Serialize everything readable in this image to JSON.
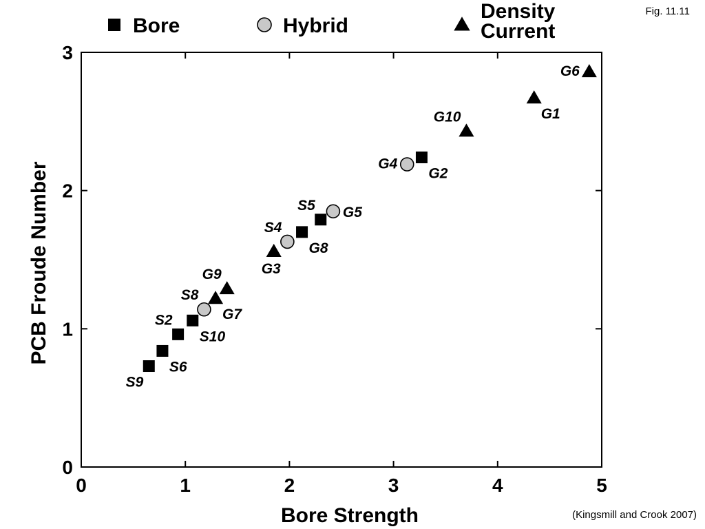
{
  "figure_label": "Fig. 11.11",
  "source_note": "(Kingsmill and Crook 2007)",
  "colors": {
    "marker": "#000000",
    "hybrid_fill": "#c8c8c8"
  },
  "chart_data": {
    "type": "scatter",
    "title": "",
    "xlabel": "Bore Strength",
    "ylabel": "PCB Froude Number",
    "xlim": [
      0,
      5
    ],
    "ylim": [
      0,
      3
    ],
    "xticks": [
      0,
      1,
      2,
      3,
      4,
      5
    ],
    "yticks": [
      0,
      1,
      2,
      3
    ],
    "grid": false,
    "legend_position": "top",
    "legend": [
      {
        "key": "bore",
        "lines": [
          "Bore"
        ]
      },
      {
        "key": "hybrid",
        "lines": [
          "Hybrid"
        ]
      },
      {
        "key": "density",
        "lines": [
          "Density",
          "Current"
        ]
      }
    ],
    "series": [
      {
        "key": "bore",
        "name": "Bore",
        "marker": "square",
        "points": [
          {
            "x": 0.65,
            "y": 0.73,
            "label": "S9",
            "label_pos": "below-left"
          },
          {
            "x": 0.78,
            "y": 0.84,
            "label": "S6",
            "label_pos": "below-right"
          },
          {
            "x": 0.93,
            "y": 0.96,
            "label": "S2",
            "label_pos": "above-left"
          },
          {
            "x": 1.07,
            "y": 1.06,
            "label": "S10",
            "label_pos": "below-right"
          },
          {
            "x": 2.12,
            "y": 1.7,
            "label": "G8",
            "label_pos": "below-right"
          },
          {
            "x": 2.3,
            "y": 1.79,
            "label": "S5",
            "label_pos": "above-left"
          },
          {
            "x": 3.27,
            "y": 2.24,
            "label": "G2",
            "label_pos": "below-right"
          }
        ]
      },
      {
        "key": "hybrid",
        "name": "Hybrid",
        "marker": "circle",
        "points": [
          {
            "x": 1.18,
            "y": 1.14,
            "label": "S8",
            "label_pos": "above-left"
          },
          {
            "x": 1.98,
            "y": 1.63,
            "label": "S4",
            "label_pos": "above-left"
          },
          {
            "x": 2.42,
            "y": 1.85,
            "label": "G5",
            "label_pos": "right"
          },
          {
            "x": 3.13,
            "y": 2.19,
            "label": "G4",
            "label_pos": "left"
          }
        ]
      },
      {
        "key": "density",
        "name": "Density Current",
        "marker": "triangle",
        "points": [
          {
            "x": 1.29,
            "y": 1.22,
            "label": "G7",
            "label_pos": "below-right"
          },
          {
            "x": 1.4,
            "y": 1.29,
            "label": "G9",
            "label_pos": "above-left"
          },
          {
            "x": 1.85,
            "y": 1.56,
            "label": "G3",
            "label_pos": "below"
          },
          {
            "x": 3.7,
            "y": 2.43,
            "label": "G10",
            "label_pos": "above-left"
          },
          {
            "x": 4.35,
            "y": 2.67,
            "label": "G1",
            "label_pos": "below-right"
          },
          {
            "x": 4.88,
            "y": 2.86,
            "label": "G6",
            "label_pos": "left"
          }
        ]
      }
    ]
  }
}
